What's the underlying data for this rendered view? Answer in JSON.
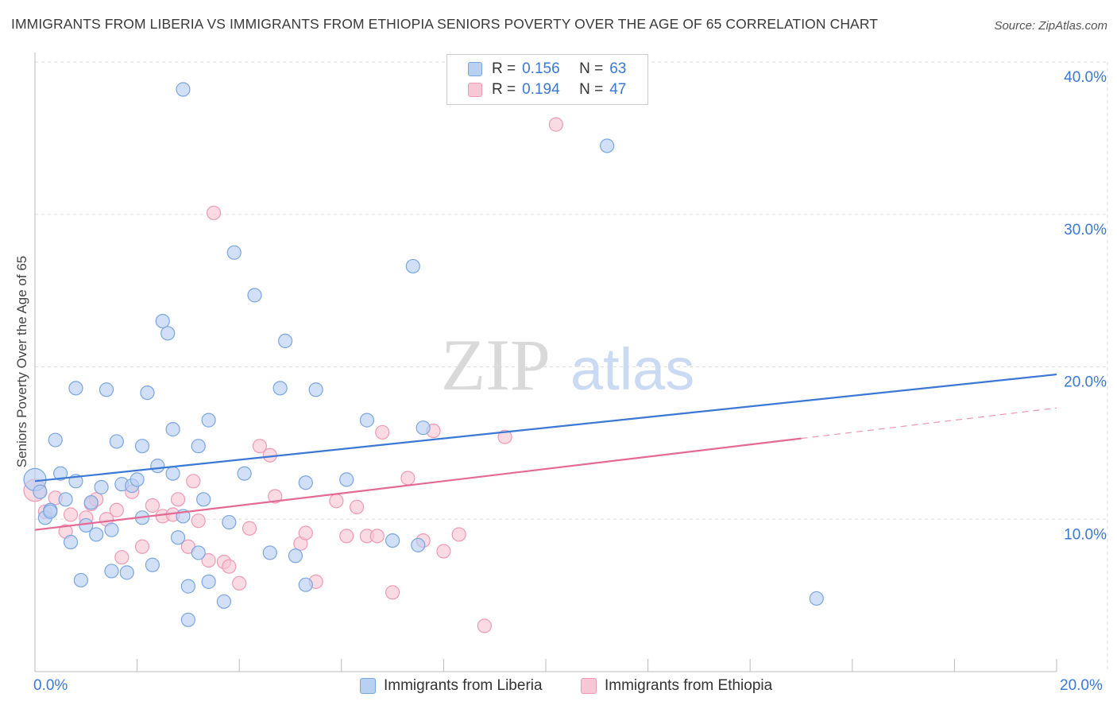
{
  "title": "IMMIGRANTS FROM LIBERIA VS IMMIGRANTS FROM ETHIOPIA SENIORS POVERTY OVER THE AGE OF 65 CORRELATION CHART",
  "source": "Source: ZipAtlas.com",
  "watermark": {
    "zip": "ZIP",
    "atlas": "atlas"
  },
  "legend": {
    "r_label": "R =",
    "n_label": "N =",
    "rows": [
      {
        "name": "Immigrants from Liberia",
        "r": "0.156",
        "n": "63"
      },
      {
        "name": "Immigrants from Ethiopia",
        "r": "0.194",
        "n": "47"
      }
    ]
  },
  "colors": {
    "liberia_fill": "#b8d0f2",
    "liberia_stroke": "#7aa6e0",
    "liberia_line": "#3a78d6",
    "ethiopia_fill": "#f8c7d6",
    "ethiopia_stroke": "#ee9ab5",
    "ethiopia_line": "#e46a95",
    "tick_text": "#3a78d6",
    "grid": "#dddddd"
  },
  "chart_data": {
    "type": "scatter",
    "title": "IMMIGRANTS FROM LIBERIA VS IMMIGRANTS FROM ETHIOPIA SENIORS POVERTY OVER THE AGE OF 65 CORRELATION CHART",
    "xlabel": "",
    "ylabel": "Seniors Poverty Over the Age of 65",
    "xlim": [
      0,
      20
    ],
    "ylim": [
      0,
      40
    ],
    "x_tick_labels": [
      "0.0%",
      "20.0%"
    ],
    "y_ticks": [
      10,
      20,
      30,
      40
    ],
    "y_tick_labels": [
      "10.0%",
      "20.0%",
      "30.0%",
      "40.0%"
    ],
    "series": [
      {
        "name": "Immigrants from Liberia",
        "r": 0.156,
        "n": 63,
        "trend": {
          "x": [
            0,
            20
          ],
          "y": [
            12.5,
            19.5
          ],
          "dashed_from": null
        },
        "points": [
          [
            0.0,
            12.6
          ],
          [
            0.1,
            11.8
          ],
          [
            0.2,
            10.1
          ],
          [
            0.3,
            10.6
          ],
          [
            0.5,
            13.0
          ],
          [
            0.6,
            11.3
          ],
          [
            0.7,
            8.5
          ],
          [
            0.8,
            12.5
          ],
          [
            0.9,
            6.0
          ],
          [
            1.0,
            9.6
          ],
          [
            1.1,
            11.1
          ],
          [
            1.2,
            9.0
          ],
          [
            1.3,
            12.1
          ],
          [
            1.5,
            9.3
          ],
          [
            1.5,
            6.6
          ],
          [
            1.6,
            15.1
          ],
          [
            1.7,
            12.3
          ],
          [
            1.8,
            6.5
          ],
          [
            1.9,
            12.2
          ],
          [
            2.0,
            12.6
          ],
          [
            2.1,
            10.1
          ],
          [
            2.2,
            18.3
          ],
          [
            2.3,
            7.0
          ],
          [
            2.4,
            13.5
          ],
          [
            2.5,
            23.0
          ],
          [
            2.6,
            22.2
          ],
          [
            2.7,
            15.9
          ],
          [
            2.8,
            8.8
          ],
          [
            2.9,
            10.2
          ],
          [
            3.0,
            5.6
          ],
          [
            3.0,
            3.4
          ],
          [
            3.2,
            7.8
          ],
          [
            3.3,
            11.3
          ],
          [
            3.4,
            5.9
          ],
          [
            3.7,
            4.6
          ],
          [
            3.8,
            9.8
          ],
          [
            3.9,
            27.5
          ],
          [
            4.1,
            13.0
          ],
          [
            4.3,
            24.7
          ],
          [
            4.6,
            7.8
          ],
          [
            4.8,
            18.6
          ],
          [
            4.9,
            21.7
          ],
          [
            5.1,
            7.6
          ],
          [
            5.3,
            5.7
          ],
          [
            5.5,
            18.5
          ],
          [
            6.1,
            12.6
          ],
          [
            6.5,
            16.5
          ],
          [
            7.0,
            8.6
          ],
          [
            7.4,
            26.6
          ],
          [
            7.5,
            8.3
          ],
          [
            7.6,
            16.0
          ],
          [
            11.2,
            34.5
          ],
          [
            15.3,
            4.8
          ],
          [
            0.8,
            18.6
          ],
          [
            0.4,
            15.2
          ],
          [
            1.4,
            18.5
          ],
          [
            2.1,
            14.8
          ],
          [
            3.2,
            14.8
          ],
          [
            3.4,
            16.5
          ],
          [
            2.7,
            13.0
          ],
          [
            0.3,
            10.5
          ],
          [
            5.3,
            12.4
          ],
          [
            2.9,
            38.2
          ]
        ]
      },
      {
        "name": "Immigrants from Ethiopia",
        "r": 0.194,
        "n": 47,
        "trend": {
          "x": [
            0,
            20
          ],
          "y": [
            9.3,
            17.3
          ],
          "dashed_from": 15
        },
        "points": [
          [
            0.0,
            11.9
          ],
          [
            0.2,
            10.5
          ],
          [
            0.4,
            11.4
          ],
          [
            0.6,
            9.2
          ],
          [
            0.7,
            10.3
          ],
          [
            1.0,
            10.1
          ],
          [
            1.1,
            11.0
          ],
          [
            1.2,
            11.3
          ],
          [
            1.4,
            10.0
          ],
          [
            1.6,
            10.6
          ],
          [
            1.7,
            7.5
          ],
          [
            1.9,
            11.8
          ],
          [
            2.1,
            8.2
          ],
          [
            2.3,
            10.9
          ],
          [
            2.5,
            10.2
          ],
          [
            2.7,
            10.3
          ],
          [
            2.8,
            11.3
          ],
          [
            3.0,
            8.2
          ],
          [
            3.1,
            12.5
          ],
          [
            3.2,
            9.9
          ],
          [
            3.4,
            7.3
          ],
          [
            3.5,
            30.1
          ],
          [
            3.7,
            7.2
          ],
          [
            3.8,
            6.9
          ],
          [
            4.0,
            5.8
          ],
          [
            4.2,
            9.4
          ],
          [
            4.4,
            14.8
          ],
          [
            4.6,
            14.2
          ],
          [
            4.7,
            11.5
          ],
          [
            5.2,
            8.4
          ],
          [
            5.3,
            9.1
          ],
          [
            5.5,
            5.9
          ],
          [
            5.9,
            11.2
          ],
          [
            6.1,
            8.9
          ],
          [
            6.3,
            10.8
          ],
          [
            6.5,
            8.9
          ],
          [
            6.7,
            8.9
          ],
          [
            6.8,
            15.7
          ],
          [
            7.0,
            5.2
          ],
          [
            7.3,
            12.7
          ],
          [
            7.6,
            8.6
          ],
          [
            7.8,
            15.8
          ],
          [
            8.0,
            7.9
          ],
          [
            8.3,
            9.0
          ],
          [
            8.8,
            3.0
          ],
          [
            9.2,
            15.4
          ],
          [
            10.2,
            35.9
          ]
        ]
      }
    ]
  },
  "axis": {
    "x_left_label": "0.0%",
    "x_right_label": "20.0%"
  }
}
